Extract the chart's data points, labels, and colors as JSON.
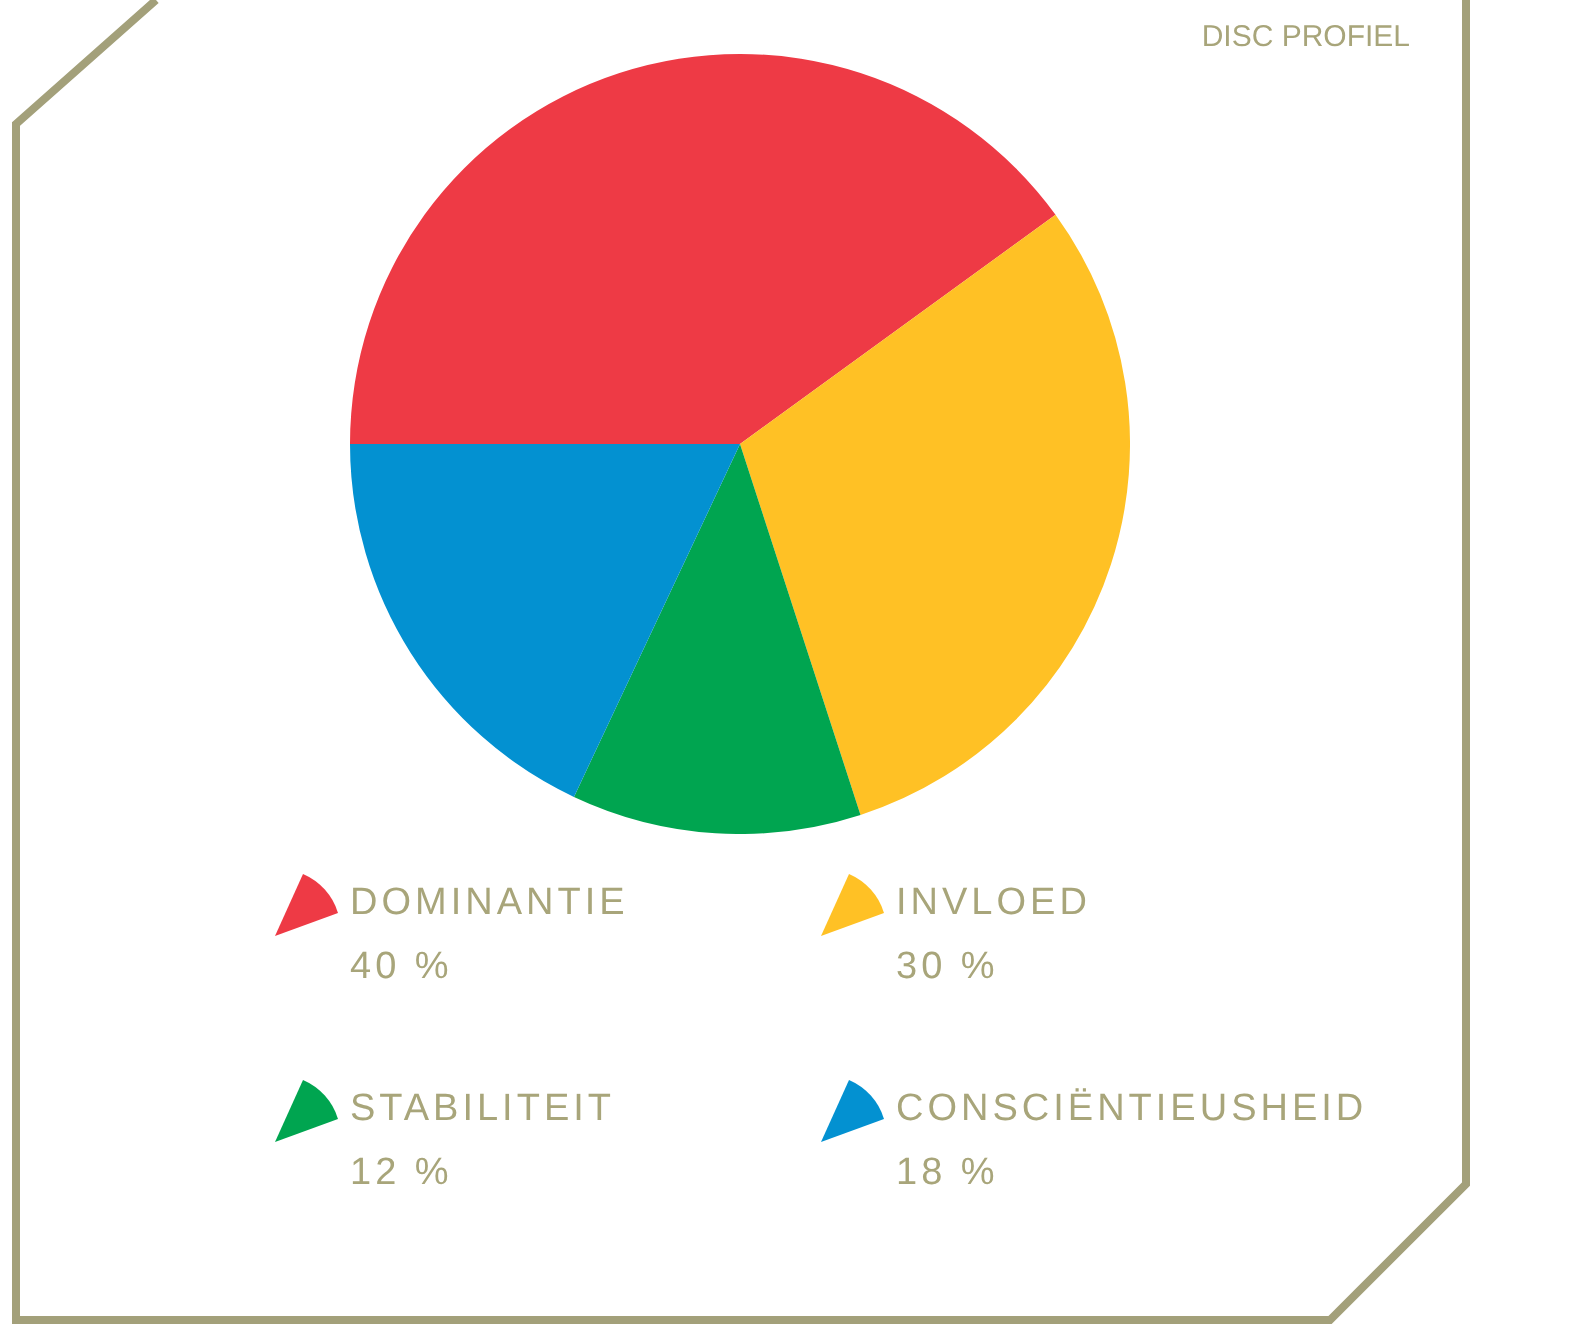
{
  "chart_data": {
    "type": "pie",
    "title": "DISC PROFIEL",
    "categories": [
      "DOMINANTIE",
      "INVLOED",
      "STABILITEIT",
      "CONSCIËNTIEUSHEID"
    ],
    "values": [
      40,
      30,
      12,
      18
    ],
    "value_labels": [
      "40 %",
      "30 %",
      "12 %",
      "18 %"
    ],
    "colors": [
      "#ee3a45",
      "#ffc125",
      "#00a550",
      "#0391d1"
    ],
    "legend": "bottom"
  }
}
